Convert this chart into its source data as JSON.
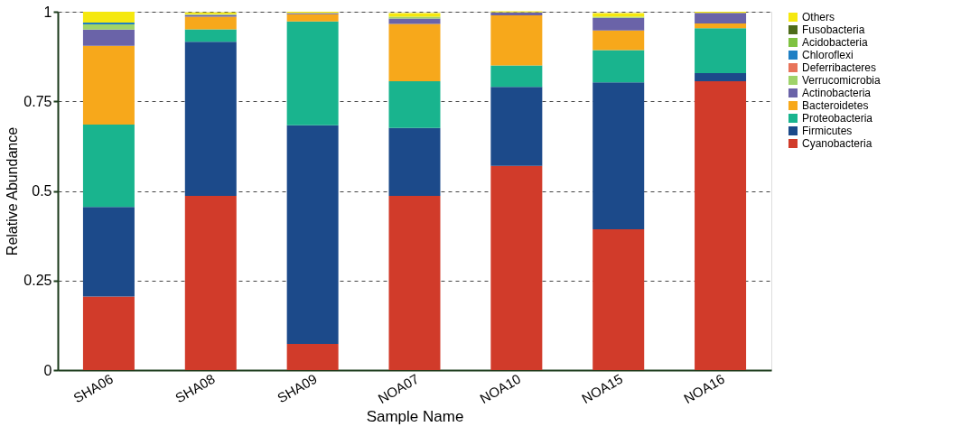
{
  "chart_data": {
    "type": "bar",
    "stacked": true,
    "xlabel": "Sample Name",
    "ylabel": "Relative Abundance",
    "categories": [
      "SHA06",
      "SHA08",
      "SHA09",
      "NOA07",
      "NOA10",
      "NOA15",
      "NOA16"
    ],
    "series": [
      {
        "name": "Cyanobacteria",
        "color": "#d13b2a",
        "values": [
          0.205,
          0.486,
          0.073,
          0.486,
          0.57,
          0.393,
          0.806
        ]
      },
      {
        "name": "Firmicutes",
        "color": "#1c4a8a",
        "values": [
          0.25,
          0.43,
          0.61,
          0.19,
          0.22,
          0.41,
          0.023
        ]
      },
      {
        "name": "Proteobacteria",
        "color": "#19b48e",
        "values": [
          0.23,
          0.035,
          0.29,
          0.13,
          0.06,
          0.09,
          0.125
        ]
      },
      {
        "name": "Bacteroidetes",
        "color": "#f7a81b",
        "values": [
          0.22,
          0.035,
          0.02,
          0.16,
          0.14,
          0.055,
          0.013
        ]
      },
      {
        "name": "Actinobacteria",
        "color": "#6a63a8",
        "values": [
          0.045,
          0.005,
          0.003,
          0.015,
          0.008,
          0.035,
          0.03
        ]
      },
      {
        "name": "Verrucomicrobia",
        "color": "#9fd36a",
        "values": [
          0.015,
          0.002,
          0.001,
          0.005,
          0.001,
          0.003,
          null
        ]
      },
      {
        "name": "Deferribacteres",
        "color": "#e8735a",
        "values": [
          0,
          0,
          0,
          0,
          0,
          0,
          0
        ]
      },
      {
        "name": "Chloroflexi",
        "color": "#1f7fc4",
        "values": [
          0.005,
          0,
          0,
          0,
          0,
          0,
          0
        ]
      },
      {
        "name": "Acidobacteria",
        "color": "#7fc241",
        "values": [
          0,
          0,
          0,
          0,
          0,
          0,
          0
        ]
      },
      {
        "name": "Fusobacteria",
        "color": "#4d6b1a",
        "values": [
          0,
          0,
          0,
          0,
          0,
          0,
          0
        ]
      },
      {
        "name": "Others",
        "color": "#f5e80f",
        "values": [
          0.03,
          0.005,
          0.003,
          0.01,
          0.002,
          0.01,
          0.003
        ]
      }
    ],
    "ylim": [
      0,
      1
    ],
    "yticks": [
      0,
      0.25,
      0.5,
      0.75,
      1
    ],
    "grid": "y",
    "legend": "right"
  }
}
